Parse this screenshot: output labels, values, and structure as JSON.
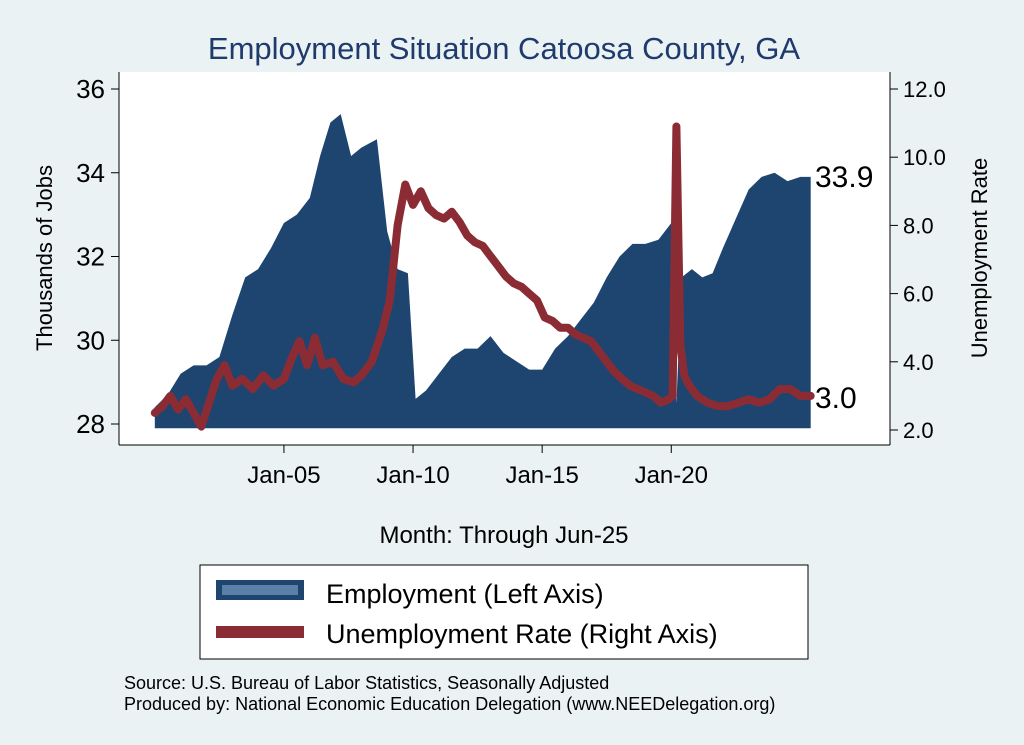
{
  "chart_data": {
    "type": "area+line",
    "title": "Employment Situation Catoosa  County, GA",
    "xlabel": "Month: Through Jun-25",
    "ylabel_left": "Thousands of Jobs",
    "ylabel_right": "Unemployment Rate",
    "ylim_left": [
      28,
      36
    ],
    "ylim_right": [
      2.0,
      12.0
    ],
    "yticks_left": [
      "28",
      "30",
      "32",
      "34",
      "36"
    ],
    "yticks_right": [
      "2.0",
      "4.0",
      "6.0",
      "8.0",
      "10.0",
      "12.0"
    ],
    "xticks": [
      "Jan-05",
      "Jan-10",
      "Jan-15",
      "Jan-20"
    ],
    "x_start": "Jan-00",
    "x_end": "Jun-25",
    "series": [
      {
        "name": "Employment (Left Axis)",
        "kind": "area",
        "color": "#1e4570",
        "points": [
          [
            2000.0,
            28.4
          ],
          [
            2000.5,
            28.7
          ],
          [
            2001.0,
            29.2
          ],
          [
            2001.5,
            29.4
          ],
          [
            2002.0,
            29.4
          ],
          [
            2002.5,
            29.6
          ],
          [
            2003.0,
            30.6
          ],
          [
            2003.5,
            31.5
          ],
          [
            2004.0,
            31.7
          ],
          [
            2004.5,
            32.2
          ],
          [
            2005.0,
            32.8
          ],
          [
            2005.5,
            33.0
          ],
          [
            2006.0,
            33.4
          ],
          [
            2006.4,
            34.4
          ],
          [
            2006.8,
            35.2
          ],
          [
            2007.2,
            35.4
          ],
          [
            2007.6,
            34.4
          ],
          [
            2008.0,
            34.6
          ],
          [
            2008.6,
            34.8
          ],
          [
            2009.0,
            32.6
          ],
          [
            2009.4,
            31.7
          ],
          [
            2009.8,
            31.6
          ],
          [
            2010.1,
            28.6
          ],
          [
            2010.5,
            28.8
          ],
          [
            2011.0,
            29.2
          ],
          [
            2011.5,
            29.6
          ],
          [
            2012.0,
            29.8
          ],
          [
            2012.5,
            29.8
          ],
          [
            2013.0,
            30.1
          ],
          [
            2013.5,
            29.7
          ],
          [
            2014.0,
            29.5
          ],
          [
            2014.5,
            29.3
          ],
          [
            2015.0,
            29.3
          ],
          [
            2015.5,
            29.8
          ],
          [
            2016.0,
            30.1
          ],
          [
            2016.5,
            30.5
          ],
          [
            2017.0,
            30.9
          ],
          [
            2017.5,
            31.5
          ],
          [
            2018.0,
            32.0
          ],
          [
            2018.5,
            32.3
          ],
          [
            2019.0,
            32.3
          ],
          [
            2019.5,
            32.4
          ],
          [
            2020.0,
            32.8
          ],
          [
            2020.2,
            28.5
          ],
          [
            2020.4,
            31.5
          ],
          [
            2020.8,
            31.7
          ],
          [
            2021.2,
            31.5
          ],
          [
            2021.6,
            31.6
          ],
          [
            2022.0,
            32.2
          ],
          [
            2022.5,
            32.9
          ],
          [
            2023.0,
            33.6
          ],
          [
            2023.5,
            33.9
          ],
          [
            2024.0,
            34.0
          ],
          [
            2024.5,
            33.8
          ],
          [
            2025.0,
            33.9
          ],
          [
            2025.4,
            33.9
          ]
        ]
      },
      {
        "name": "Unemployment Rate (Right Axis)",
        "kind": "line",
        "color": "#8b2c35",
        "points": [
          [
            2000.0,
            2.5
          ],
          [
            2000.3,
            2.7
          ],
          [
            2000.6,
            3.0
          ],
          [
            2000.9,
            2.6
          ],
          [
            2001.2,
            2.9
          ],
          [
            2001.5,
            2.5
          ],
          [
            2001.8,
            2.1
          ],
          [
            2002.1,
            2.8
          ],
          [
            2002.4,
            3.5
          ],
          [
            2002.7,
            3.9
          ],
          [
            2003.0,
            3.3
          ],
          [
            2003.4,
            3.5
          ],
          [
            2003.8,
            3.2
          ],
          [
            2004.2,
            3.6
          ],
          [
            2004.6,
            3.3
          ],
          [
            2005.0,
            3.5
          ],
          [
            2005.3,
            4.1
          ],
          [
            2005.6,
            4.6
          ],
          [
            2005.9,
            3.9
          ],
          [
            2006.2,
            4.7
          ],
          [
            2006.5,
            3.9
          ],
          [
            2006.9,
            4.0
          ],
          [
            2007.3,
            3.5
          ],
          [
            2007.7,
            3.4
          ],
          [
            2008.0,
            3.6
          ],
          [
            2008.4,
            4.0
          ],
          [
            2008.8,
            4.9
          ],
          [
            2009.1,
            5.8
          ],
          [
            2009.4,
            8.0
          ],
          [
            2009.7,
            9.2
          ],
          [
            2010.0,
            8.6
          ],
          [
            2010.3,
            9.0
          ],
          [
            2010.6,
            8.5
          ],
          [
            2010.9,
            8.3
          ],
          [
            2011.2,
            8.2
          ],
          [
            2011.5,
            8.4
          ],
          [
            2011.8,
            8.1
          ],
          [
            2012.1,
            7.7
          ],
          [
            2012.4,
            7.5
          ],
          [
            2012.7,
            7.4
          ],
          [
            2013.0,
            7.1
          ],
          [
            2013.3,
            6.8
          ],
          [
            2013.6,
            6.5
          ],
          [
            2013.9,
            6.3
          ],
          [
            2014.2,
            6.2
          ],
          [
            2014.5,
            6.0
          ],
          [
            2014.8,
            5.8
          ],
          [
            2015.1,
            5.3
          ],
          [
            2015.4,
            5.2
          ],
          [
            2015.7,
            5.0
          ],
          [
            2016.0,
            5.0
          ],
          [
            2016.3,
            4.8
          ],
          [
            2016.6,
            4.7
          ],
          [
            2016.9,
            4.6
          ],
          [
            2017.2,
            4.3
          ],
          [
            2017.5,
            4.0
          ],
          [
            2017.8,
            3.7
          ],
          [
            2018.1,
            3.5
          ],
          [
            2018.4,
            3.3
          ],
          [
            2018.7,
            3.2
          ],
          [
            2019.0,
            3.1
          ],
          [
            2019.3,
            3.0
          ],
          [
            2019.6,
            2.8
          ],
          [
            2019.9,
            2.9
          ],
          [
            2020.05,
            3.0
          ],
          [
            2020.2,
            10.9
          ],
          [
            2020.35,
            4.5
          ],
          [
            2020.5,
            3.6
          ],
          [
            2020.7,
            3.3
          ],
          [
            2021.0,
            3.0
          ],
          [
            2021.4,
            2.8
          ],
          [
            2021.8,
            2.7
          ],
          [
            2022.2,
            2.7
          ],
          [
            2022.6,
            2.8
          ],
          [
            2023.0,
            2.9
          ],
          [
            2023.4,
            2.8
          ],
          [
            2023.8,
            2.9
          ],
          [
            2024.2,
            3.2
          ],
          [
            2024.6,
            3.2
          ],
          [
            2025.0,
            3.0
          ],
          [
            2025.4,
            3.0
          ]
        ]
      }
    ],
    "end_labels": [
      "33.9",
      "3.0"
    ]
  },
  "legend": {
    "employment": "Employment (Left Axis)",
    "unemployment": "Unemployment Rate (Right Axis)"
  },
  "source": {
    "line1": "Source: U.S. Bureau of Labor Statistics, Seasonally Adjusted",
    "line2": "Produced by: National Economic Education Delegation (www.NEEDelegation.org)"
  },
  "colors": {
    "background": "#eaf2f3",
    "plot_background": "#ffffff",
    "title": "#1f3b6e",
    "employment": "#1e4570",
    "unemployment": "#8b2c35"
  }
}
